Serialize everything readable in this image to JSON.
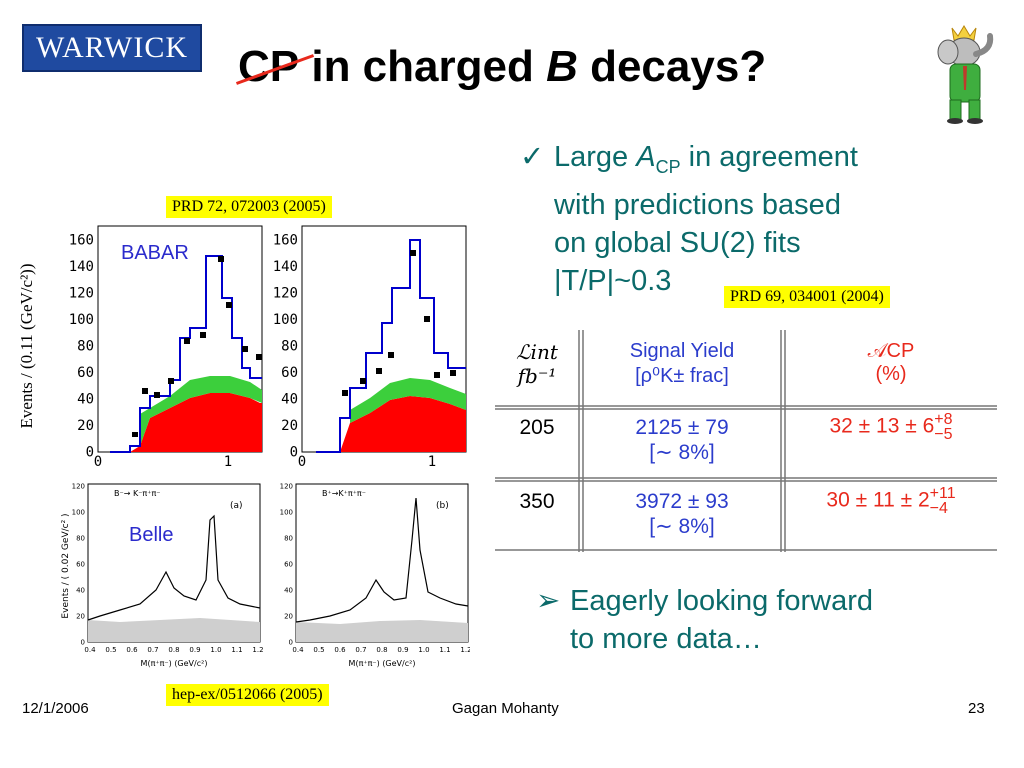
{
  "header": {
    "logo_text": "WARWICK",
    "title_cp": "CP",
    "title_mid": " in charged ",
    "title_b": "B",
    "title_end": " decays?"
  },
  "bullets": {
    "b1_line1_pre": "Large ",
    "b1_line1_a": "A",
    "b1_line1_sub": "CP",
    "b1_line1_post": " in agreement",
    "b1_line2": "with predictions based",
    "b1_line3": "on global SU(2) fits",
    "b1_line4": "|T/P|~0.3",
    "b2_line1": "Eagerly looking forward",
    "b2_line2": "to more data…"
  },
  "refs": {
    "babar": "PRD 72, 072003 (2005)",
    "theory": "PRD 69, 034001 (2004)",
    "belle": "hep-ex/0512066 (2005)"
  },
  "plots": {
    "babar_label": "BABAR",
    "belle_label": "Belle",
    "babar_ylabel": "Events / (0.11 (GeV/c²))",
    "babar_yticks": [
      "160",
      "140",
      "120",
      "100",
      "80",
      "60",
      "40",
      "20",
      "0"
    ],
    "babar_xticks": [
      "0",
      "1"
    ],
    "belle_panel_a": "(a)",
    "belle_panel_b": "(b)",
    "belle_decay_a": "B⁻→ K⁻π⁺π⁻",
    "belle_decay_b": "B⁺→K⁺π⁺π⁻",
    "belle_yticks": [
      "120",
      "100",
      "80",
      "60",
      "40",
      "20",
      "0"
    ],
    "belle_xticks": [
      "0.4",
      "0.5",
      "0.6",
      "0.7",
      "0.8",
      "0.9",
      "1.0",
      "1.1",
      "1.2"
    ],
    "belle_ylabel": "Events / ( 0.02 GeV/c² )",
    "belle_xlabel": "M(π⁺π⁻) (GeV/c²)"
  },
  "table": {
    "h_lumi": "ℒint",
    "h_lumi2": "fb⁻¹",
    "h_yield1": "Signal Yield",
    "h_yield2": "[ρ⁰K± frac]",
    "h_acp1": "𝒜CP",
    "h_acp2": "(%)",
    "rows": [
      {
        "lumi": "205",
        "yield": "2125 ± 79",
        "frac": "[∼ 8%]",
        "acp": "32 ± 13 ± 6",
        "acp_up": "+8",
        "acp_dn": "−5"
      },
      {
        "lumi": "350",
        "yield": "3972 ± 93",
        "frac": "[∼ 8%]",
        "acp": "30 ± 11 ± 2",
        "acp_up": "+11",
        "acp_dn": "−4"
      }
    ]
  },
  "footer": {
    "date": "12/1/2006",
    "author": "Gagan Mohanty",
    "page": "23"
  }
}
